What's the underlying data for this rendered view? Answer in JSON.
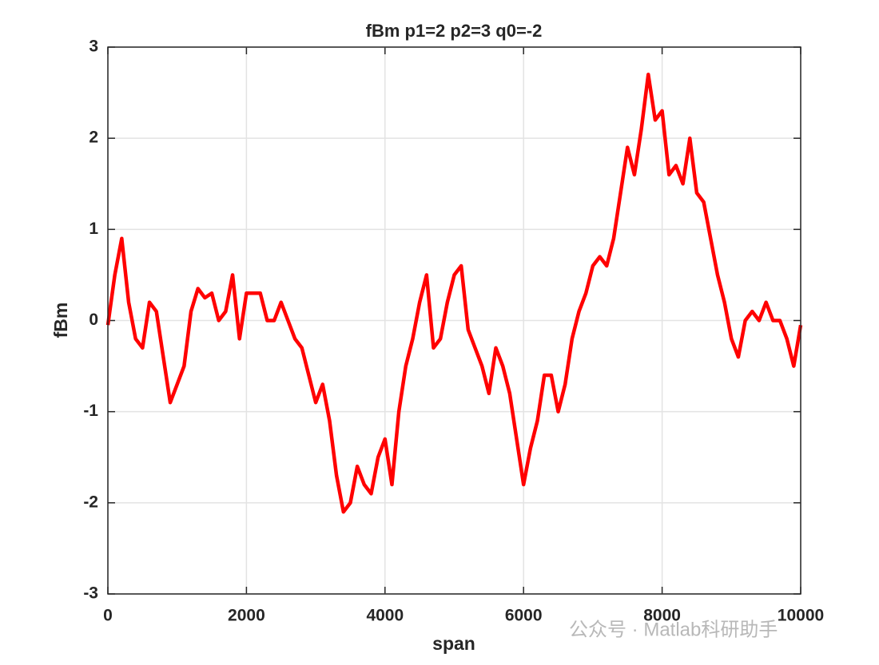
{
  "chart_data": {
    "type": "line",
    "title": "fBm p1=2 p2=3 q0=-2",
    "xlabel": "span",
    "ylabel": "fBm",
    "annotation": "公众号 · Matlab科研助手",
    "x": [
      0,
      100,
      200,
      300,
      400,
      500,
      600,
      700,
      800,
      900,
      1000,
      1100,
      1200,
      1300,
      1400,
      1500,
      1600,
      1700,
      1800,
      1900,
      2000,
      2100,
      2200,
      2300,
      2400,
      2500,
      2600,
      2700,
      2800,
      2900,
      3000,
      3100,
      3200,
      3300,
      3400,
      3500,
      3600,
      3700,
      3800,
      3900,
      4000,
      4100,
      4200,
      4300,
      4400,
      4500,
      4600,
      4700,
      4800,
      4900,
      5000,
      5100,
      5200,
      5300,
      5400,
      5500,
      5600,
      5700,
      5800,
      5900,
      6000,
      6100,
      6200,
      6300,
      6400,
      6500,
      6600,
      6700,
      6800,
      6900,
      7000,
      7100,
      7200,
      7300,
      7400,
      7500,
      7600,
      7700,
      7800,
      7900,
      8000,
      8100,
      8200,
      8300,
      8400,
      8500,
      8600,
      8700,
      8800,
      8900,
      9000,
      9100,
      9200,
      9300,
      9400,
      9500,
      9600,
      9700,
      9800,
      9900,
      10000
    ],
    "series": [
      {
        "name": "fBm",
        "color": "#ff0000",
        "values": [
          -0.05,
          0.5,
          0.9,
          0.2,
          -0.2,
          -0.3,
          0.2,
          0.1,
          -0.4,
          -0.9,
          -0.7,
          -0.5,
          0.1,
          0.35,
          0.25,
          0.3,
          0.0,
          0.1,
          0.5,
          -0.2,
          0.3,
          0.3,
          0.3,
          0.0,
          0.0,
          0.2,
          0.0,
          -0.2,
          -0.3,
          -0.6,
          -0.9,
          -0.7,
          -1.1,
          -1.7,
          -2.1,
          -2.0,
          -1.6,
          -1.8,
          -1.9,
          -1.5,
          -1.3,
          -1.8,
          -1.0,
          -0.5,
          -0.2,
          0.2,
          0.5,
          -0.3,
          -0.2,
          0.2,
          0.5,
          0.6,
          -0.1,
          -0.3,
          -0.5,
          -0.8,
          -0.3,
          -0.5,
          -0.8,
          -1.3,
          -1.8,
          -1.4,
          -1.1,
          -0.6,
          -0.6,
          -1.0,
          -0.7,
          -0.2,
          0.1,
          0.3,
          0.6,
          0.7,
          0.6,
          0.9,
          1.4,
          1.9,
          1.6,
          2.1,
          2.7,
          2.2,
          2.3,
          1.6,
          1.7,
          1.5,
          2.0,
          1.4,
          1.3,
          0.9,
          0.5,
          0.2,
          -0.2,
          -0.4,
          0.0,
          0.1,
          0.0,
          0.2,
          0.0,
          0.0,
          -0.2,
          -0.5,
          -0.05
        ]
      }
    ],
    "xlim": [
      0,
      10000
    ],
    "xticks": [
      0,
      2000,
      4000,
      6000,
      8000,
      10000
    ],
    "ylim": [
      -3,
      3
    ],
    "yticks": [
      -3,
      -2,
      -1,
      0,
      1,
      2,
      3
    ],
    "grid": true
  }
}
